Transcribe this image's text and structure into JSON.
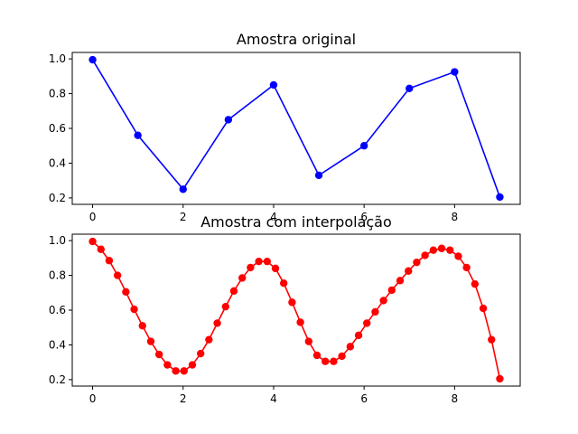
{
  "chart_data": [
    {
      "type": "line",
      "title": "Amostra original",
      "xlabel": "",
      "ylabel": "",
      "xlim": [
        -0.45,
        9.45
      ],
      "ylim": [
        0.163,
        1.037
      ],
      "xticks": [
        0,
        2,
        4,
        6,
        8
      ],
      "xtick_labels": [
        "0",
        "2",
        "4",
        "6",
        "8"
      ],
      "yticks": [
        0.2,
        0.4,
        0.6,
        0.8,
        1.0
      ],
      "ytick_labels": [
        "0.2",
        "0.4",
        "0.6",
        "0.8",
        "1.0"
      ],
      "grid": false,
      "color": "#0000ff",
      "marker": "circle",
      "series": [
        {
          "x": [
            0,
            1,
            2,
            3,
            4,
            5,
            6,
            7,
            8,
            9
          ],
          "values": [
            0.995,
            0.56,
            0.25,
            0.65,
            0.85,
            0.33,
            0.5,
            0.83,
            0.925,
            0.205
          ]
        }
      ]
    },
    {
      "type": "line",
      "title": "Amostra com interpolação",
      "xlabel": "",
      "ylabel": "",
      "xlim": [
        -0.45,
        9.45
      ],
      "ylim": [
        0.163,
        1.037
      ],
      "xticks": [
        0,
        2,
        4,
        6,
        8
      ],
      "xtick_labels": [
        "0",
        "2",
        "4",
        "6",
        "8"
      ],
      "yticks": [
        0.2,
        0.4,
        0.6,
        0.8,
        1.0
      ],
      "ytick_labels": [
        "0.2",
        "0.4",
        "0.6",
        "0.8",
        "1.0"
      ],
      "grid": false,
      "color": "#ff0000",
      "marker": "circle",
      "series": [
        {
          "x": [
            0,
            0.184,
            0.367,
            0.551,
            0.735,
            0.918,
            1.102,
            1.286,
            1.469,
            1.653,
            1.837,
            2.02,
            2.204,
            2.388,
            2.571,
            2.755,
            2.939,
            3.122,
            3.306,
            3.49,
            3.673,
            3.857,
            4.041,
            4.224,
            4.408,
            4.592,
            4.776,
            4.959,
            5.143,
            5.327,
            5.51,
            5.694,
            5.878,
            6.061,
            6.245,
            6.429,
            6.612,
            6.796,
            6.98,
            7.163,
            7.347,
            7.531,
            7.714,
            7.898,
            8.082,
            8.265,
            8.449,
            8.633,
            8.816,
            9.0
          ],
          "values": [
            0.995,
            0.95,
            0.885,
            0.8,
            0.705,
            0.605,
            0.51,
            0.42,
            0.345,
            0.285,
            0.25,
            0.25,
            0.285,
            0.35,
            0.43,
            0.525,
            0.62,
            0.71,
            0.785,
            0.845,
            0.88,
            0.88,
            0.84,
            0.755,
            0.645,
            0.53,
            0.42,
            0.34,
            0.305,
            0.305,
            0.335,
            0.39,
            0.455,
            0.525,
            0.59,
            0.655,
            0.715,
            0.77,
            0.825,
            0.875,
            0.915,
            0.945,
            0.955,
            0.945,
            0.91,
            0.845,
            0.75,
            0.61,
            0.43,
            0.205
          ]
        }
      ]
    }
  ]
}
